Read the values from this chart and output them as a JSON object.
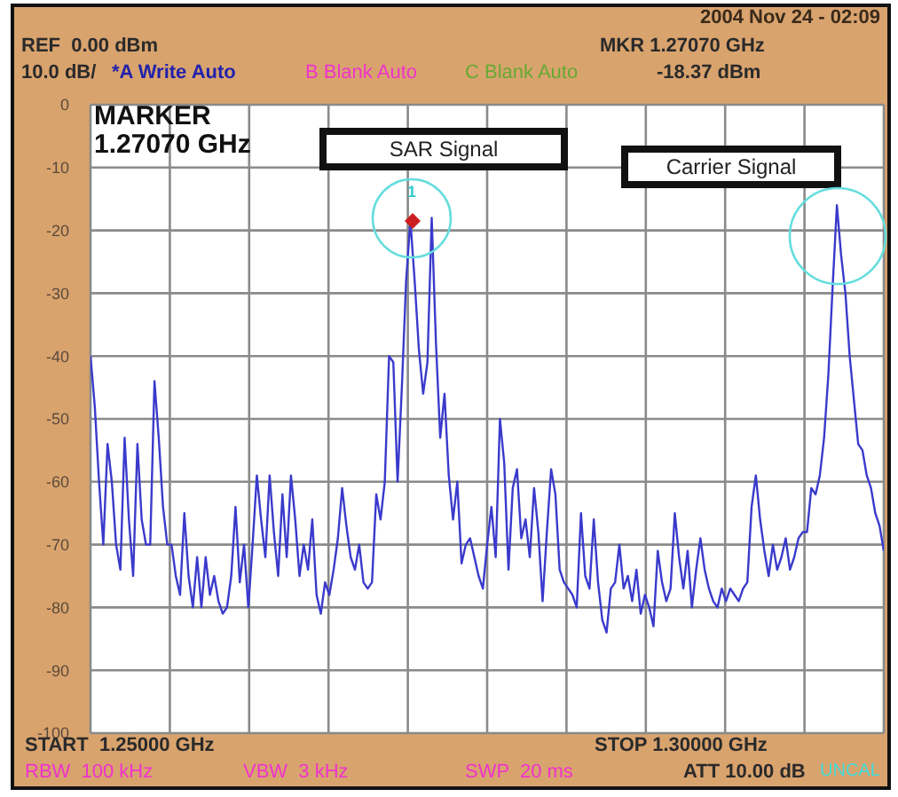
{
  "chart_data": {
    "type": "line",
    "series": [
      {
        "type": "line",
        "color": "#3a3acc",
        "marker": "none",
        "values": [
          -40,
          -48,
          -60,
          -70,
          -54,
          -60,
          -70,
          -74,
          -53,
          -66,
          -75,
          -54,
          -66,
          -70,
          -70,
          -44,
          -53,
          -64,
          -70,
          -70,
          -75,
          -78,
          -65,
          -75,
          -80,
          -72,
          -80,
          -72,
          -78,
          -75,
          -79,
          -81,
          -80,
          -75,
          -64,
          -76,
          -70,
          -80,
          -70,
          -59,
          -66,
          -72,
          -59,
          -68,
          -75,
          -62,
          -72,
          -59,
          -66,
          -75,
          -70,
          -74,
          -66,
          -78,
          -81,
          -76,
          -78,
          -74,
          -69,
          -61,
          -67,
          -72,
          -74,
          -70,
          -76,
          -77,
          -76,
          -62,
          -66,
          -60,
          -40,
          -41,
          -60,
          -45,
          -28,
          -18.4,
          -28,
          -39,
          -46,
          -41,
          -18,
          -38,
          -53,
          -46,
          -59,
          -66,
          -60,
          -73,
          -70,
          -69,
          -72,
          -75,
          -77,
          -70,
          -64,
          -72,
          -50,
          -57,
          -74,
          -61,
          -58,
          -69,
          -66,
          -72,
          -61,
          -68,
          -79,
          -68,
          -58,
          -62,
          -74,
          -76,
          -77,
          -78,
          -80,
          -65,
          -75,
          -77,
          -66,
          -76,
          -82,
          -84,
          -77,
          -76,
          -70,
          -77,
          -75,
          -79,
          -74,
          -81,
          -78,
          -80,
          -83,
          -71,
          -76,
          -79,
          -77,
          -65,
          -72,
          -77,
          -71,
          -80,
          -74,
          -69,
          -74,
          -77,
          -79,
          -80,
          -77,
          -79,
          -77,
          -78,
          -79,
          -77,
          -76,
          -64,
          -59,
          -66,
          -71,
          -75,
          -70,
          -74,
          -72,
          -69,
          -74,
          -72,
          -69,
          -68,
          -68,
          -61,
          -62,
          -59,
          -53,
          -43,
          -29,
          -16,
          -24,
          -30,
          -40,
          -47,
          -54,
          -55,
          -59,
          -61,
          -65,
          -67,
          -71
        ]
      }
    ],
    "categories": [
      null,
      null,
      null,
      null,
      null,
      null,
      null,
      null,
      null,
      null,
      null,
      null,
      null,
      null,
      null,
      null,
      null,
      null,
      null,
      null,
      null,
      null,
      null,
      null,
      null,
      null,
      null,
      null,
      null,
      null,
      null,
      null,
      null,
      null,
      null,
      null,
      null,
      null,
      null,
      null,
      null,
      null,
      null,
      null,
      null,
      null,
      null,
      null,
      null,
      null,
      null,
      null,
      null,
      null,
      null,
      null,
      null,
      null,
      null,
      null,
      null,
      null,
      null,
      null,
      null,
      null,
      null,
      null,
      null,
      null,
      null,
      null,
      null,
      null,
      null,
      null,
      null,
      null,
      null,
      null,
      null,
      null,
      null,
      null,
      null,
      null,
      null,
      null,
      null,
      null,
      null,
      null,
      null,
      null,
      null,
      null,
      null,
      null,
      null,
      null,
      null,
      null,
      null,
      null,
      null,
      null,
      null,
      null,
      null,
      null,
      null,
      null,
      null,
      null,
      null,
      null,
      null,
      null,
      null,
      null,
      null,
      null,
      null,
      null,
      null,
      null,
      null,
      null,
      null,
      null,
      null,
      null,
      null,
      null,
      null,
      null,
      null,
      null,
      null,
      null,
      null,
      null,
      null,
      null,
      null,
      null,
      null,
      null,
      null,
      null,
      null,
      null,
      null,
      null,
      null,
      null,
      null,
      null,
      null,
      null,
      null,
      null,
      null,
      null,
      null,
      null,
      null,
      null,
      null,
      null,
      null,
      null,
      null,
      null,
      null,
      null,
      null,
      null,
      null,
      null,
      null,
      null,
      null,
      null,
      null,
      null,
      null
    ],
    "ylim": [
      -100,
      0
    ],
    "yticks": [
      -100,
      -90,
      -80,
      -70,
      -60,
      -50,
      -40,
      -30,
      -20,
      -10,
      0
    ],
    "tick_labels": "y",
    "grid": true,
    "annotations": [
      "2004 Nov 24 - 02:09",
      "REF  0.00 dBm",
      "10.0 dB/",
      "*A Write Auto",
      "B Blank Auto",
      "C Blank Auto",
      "MKR 1.27070 GHz",
      "-18.37 dBm",
      "MARKER",
      "1.27070 GHz",
      "START  1.25000 GHz",
      "STOP 1.30000 GHz",
      "RBW  100 kHz",
      "VBW  3 kHz",
      "SWP  20 ms",
      "ATT 10.00 dB",
      "UNCAL",
      "SAR Signal",
      "Carrier Signal",
      {
        "text": "1",
        "y": -18.37
      }
    ]
  }
}
